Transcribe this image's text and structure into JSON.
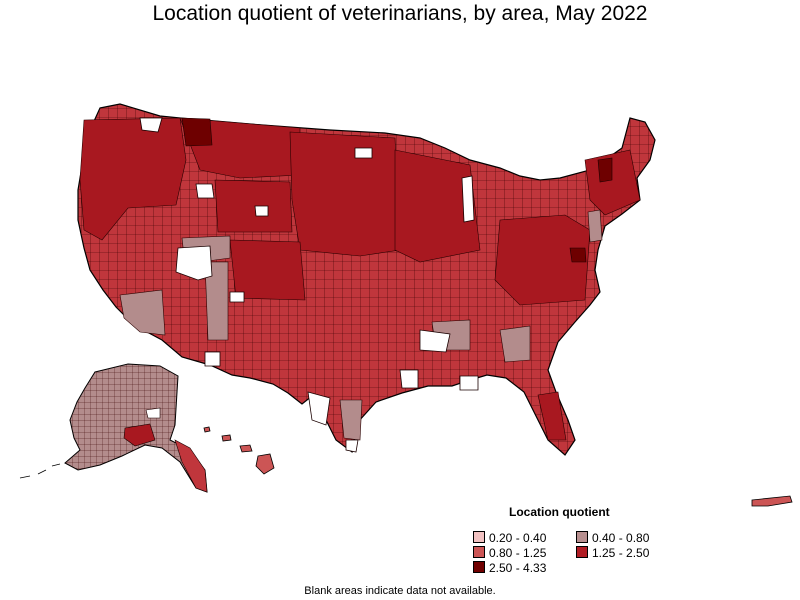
{
  "title": "Location quotient of veterinarians, by area, May 2022",
  "legend": {
    "title": "Location quotient",
    "items": [
      {
        "label": "0.20 - 0.40",
        "color": "#f2c2c2"
      },
      {
        "label": "0.40 - 0.80",
        "color": "#b89090"
      },
      {
        "label": "0.80 - 1.25",
        "color": "#cc5555"
      },
      {
        "label": "1.25 - 2.50",
        "color": "#b01c24"
      },
      {
        "label": "2.50 - 4.33",
        "color": "#700000"
      }
    ]
  },
  "footnote": "Blank areas indicate data not available.",
  "colors": {
    "border": "#1a0000",
    "no_data": "#ffffff"
  }
}
